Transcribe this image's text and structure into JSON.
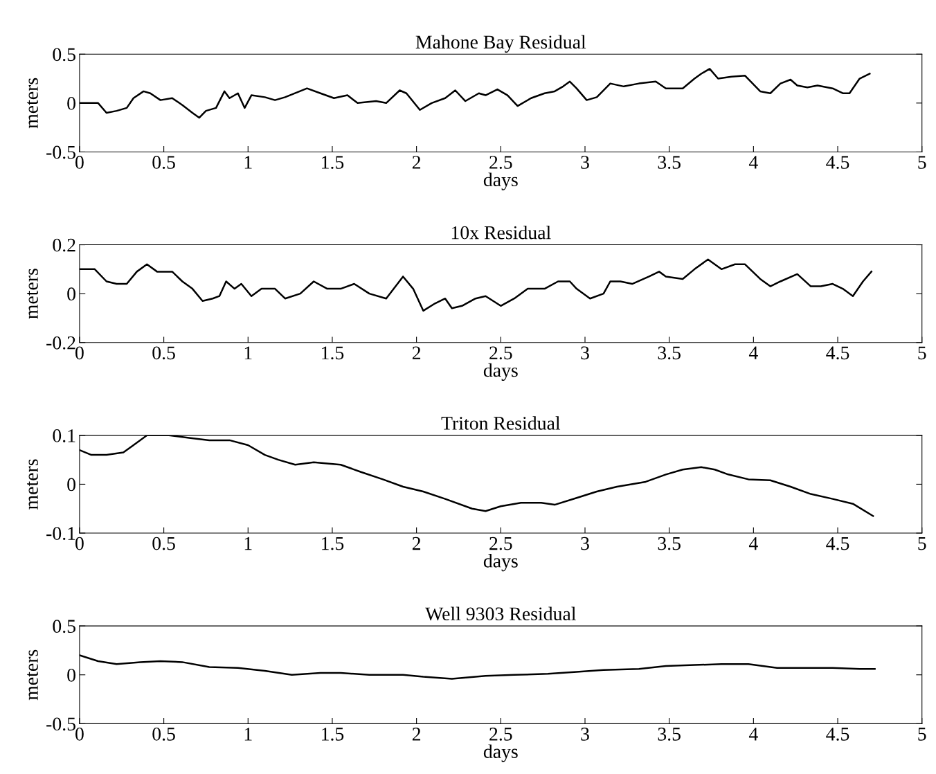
{
  "chart_data": [
    {
      "type": "line",
      "title": "Mahone Bay Residual",
      "xlabel": "days",
      "ylabel": "meters",
      "color": "#000000",
      "grid": false,
      "xlim": [
        0,
        5
      ],
      "xticks": [
        0,
        0.5,
        1,
        1.5,
        2,
        2.5,
        3,
        3.5,
        4,
        4.5,
        5
      ],
      "ylim": [
        -0.5,
        0.5
      ],
      "yticks": [
        -0.5,
        0,
        0.5
      ],
      "x": [
        0,
        0.11,
        0.16,
        0.22,
        0.28,
        0.32,
        0.38,
        0.42,
        0.48,
        0.55,
        0.61,
        0.67,
        0.71,
        0.75,
        0.81,
        0.86,
        0.89,
        0.94,
        0.98,
        1.02,
        1.1,
        1.16,
        1.22,
        1.35,
        1.43,
        1.51,
        1.59,
        1.65,
        1.76,
        1.82,
        1.9,
        1.94,
        2.02,
        2.09,
        2.17,
        2.23,
        2.29,
        2.37,
        2.41,
        2.48,
        2.54,
        2.6,
        2.68,
        2.76,
        2.82,
        2.87,
        2.91,
        2.95,
        3.01,
        3.07,
        3.15,
        3.23,
        3.32,
        3.42,
        3.48,
        3.58,
        3.65,
        3.69,
        3.74,
        3.79,
        3.87,
        3.95,
        4.04,
        4.1,
        4.16,
        4.22,
        4.26,
        4.32,
        4.38,
        4.47,
        4.53,
        4.57,
        4.63,
        4.69
      ],
      "values": [
        0,
        0.0,
        -0.1,
        -0.08,
        -0.05,
        0.05,
        0.12,
        0.1,
        0.03,
        0.05,
        -0.02,
        -0.1,
        -0.15,
        -0.08,
        -0.05,
        0.12,
        0.05,
        0.1,
        -0.05,
        0.08,
        0.06,
        0.03,
        0.06,
        0.15,
        0.1,
        0.05,
        0.08,
        0.0,
        0.02,
        0.0,
        0.13,
        0.1,
        -0.07,
        0.0,
        0.05,
        0.13,
        0.02,
        0.1,
        0.08,
        0.14,
        0.08,
        -0.03,
        0.05,
        0.1,
        0.12,
        0.17,
        0.22,
        0.15,
        0.03,
        0.06,
        0.2,
        0.17,
        0.2,
        0.22,
        0.15,
        0.15,
        0.25,
        0.3,
        0.35,
        0.25,
        0.27,
        0.28,
        0.12,
        0.1,
        0.2,
        0.24,
        0.18,
        0.16,
        0.18,
        0.15,
        0.1,
        0.1,
        0.25,
        0.3
      ]
    },
    {
      "type": "line",
      "title": "10x Residual",
      "xlabel": "days",
      "ylabel": "meters",
      "color": "#000000",
      "grid": false,
      "xlim": [
        0,
        5
      ],
      "xticks": [
        0,
        0.5,
        1,
        1.5,
        2,
        2.5,
        3,
        3.5,
        4,
        4.5,
        5
      ],
      "ylim": [
        -0.2,
        0.2
      ],
      "yticks": [
        -0.2,
        0,
        0.2
      ],
      "x": [
        0,
        0.09,
        0.16,
        0.22,
        0.28,
        0.34,
        0.4,
        0.46,
        0.55,
        0.61,
        0.67,
        0.73,
        0.79,
        0.83,
        0.87,
        0.92,
        0.96,
        1.02,
        1.08,
        1.16,
        1.22,
        1.31,
        1.39,
        1.47,
        1.55,
        1.63,
        1.72,
        1.82,
        1.92,
        1.98,
        2.04,
        2.11,
        2.17,
        2.21,
        2.27,
        2.35,
        2.41,
        2.5,
        2.58,
        2.66,
        2.76,
        2.84,
        2.91,
        2.95,
        3.03,
        3.11,
        3.15,
        3.21,
        3.28,
        3.38,
        3.44,
        3.48,
        3.58,
        3.65,
        3.73,
        3.81,
        3.89,
        3.95,
        4.04,
        4.1,
        4.16,
        4.26,
        4.34,
        4.4,
        4.47,
        4.53,
        4.59,
        4.65,
        4.7
      ],
      "values": [
        0.1,
        0.1,
        0.05,
        0.04,
        0.04,
        0.09,
        0.12,
        0.09,
        0.09,
        0.05,
        0.02,
        -0.03,
        -0.02,
        -0.01,
        0.05,
        0.02,
        0.04,
        -0.01,
        0.02,
        0.02,
        -0.02,
        0.0,
        0.05,
        0.02,
        0.02,
        0.04,
        0.0,
        -0.02,
        0.07,
        0.02,
        -0.07,
        -0.04,
        -0.02,
        -0.06,
        -0.05,
        -0.02,
        -0.01,
        -0.05,
        -0.02,
        0.02,
        0.02,
        0.05,
        0.05,
        0.02,
        -0.02,
        0.0,
        0.05,
        0.05,
        0.04,
        0.07,
        0.09,
        0.07,
        0.06,
        0.1,
        0.14,
        0.1,
        0.12,
        0.12,
        0.06,
        0.03,
        0.05,
        0.08,
        0.03,
        0.03,
        0.04,
        0.02,
        -0.01,
        0.05,
        0.09
      ]
    },
    {
      "type": "line",
      "title": "Triton Residual",
      "xlabel": "days",
      "ylabel": "meters",
      "color": "#000000",
      "grid": false,
      "xlim": [
        0,
        5
      ],
      "xticks": [
        0,
        0.5,
        1,
        1.5,
        2,
        2.5,
        3,
        3.5,
        4,
        4.5,
        5
      ],
      "ylim": [
        -0.1,
        0.1
      ],
      "yticks": [
        -0.1,
        0,
        0.1
      ],
      "x": [
        0,
        0.07,
        0.16,
        0.26,
        0.32,
        0.4,
        0.53,
        0.65,
        0.77,
        0.89,
        1.0,
        1.1,
        1.18,
        1.28,
        1.39,
        1.55,
        1.67,
        1.8,
        1.92,
        2.04,
        2.17,
        2.33,
        2.41,
        2.5,
        2.62,
        2.74,
        2.82,
        2.95,
        3.07,
        3.19,
        3.36,
        3.48,
        3.58,
        3.69,
        3.77,
        3.85,
        3.97,
        4.1,
        4.22,
        4.34,
        4.47,
        4.59,
        4.71
      ],
      "values": [
        0.07,
        0.06,
        0.06,
        0.065,
        0.08,
        0.1,
        0.1,
        0.095,
        0.09,
        0.09,
        0.08,
        0.06,
        0.05,
        0.04,
        0.045,
        0.04,
        0.025,
        0.01,
        -0.005,
        -0.015,
        -0.03,
        -0.05,
        -0.055,
        -0.045,
        -0.038,
        -0.038,
        -0.042,
        -0.028,
        -0.015,
        -0.005,
        0.005,
        0.02,
        0.03,
        0.035,
        0.03,
        0.02,
        0.01,
        0.008,
        -0.005,
        -0.02,
        -0.03,
        -0.04,
        -0.065
      ]
    },
    {
      "type": "line",
      "title": "Well 9303 Residual",
      "xlabel": "days",
      "ylabel": "meters",
      "color": "#000000",
      "grid": false,
      "xlim": [
        0,
        5
      ],
      "xticks": [
        0,
        0.5,
        1,
        1.5,
        2,
        2.5,
        3,
        3.5,
        4,
        4.5,
        5
      ],
      "ylim": [
        -0.5,
        0.5
      ],
      "yticks": [
        -0.5,
        0,
        0.5
      ],
      "x": [
        0,
        0.11,
        0.22,
        0.36,
        0.48,
        0.61,
        0.77,
        0.94,
        1.1,
        1.26,
        1.43,
        1.55,
        1.72,
        1.92,
        2.04,
        2.21,
        2.41,
        2.58,
        2.78,
        2.95,
        3.11,
        3.32,
        3.48,
        3.65,
        3.81,
        3.97,
        4.14,
        4.3,
        4.47,
        4.63,
        4.72
      ],
      "values": [
        0.2,
        0.14,
        0.11,
        0.13,
        0.14,
        0.13,
        0.08,
        0.07,
        0.04,
        0.0,
        0.02,
        0.02,
        0.0,
        0.0,
        -0.02,
        -0.04,
        -0.01,
        0.0,
        0.01,
        0.03,
        0.05,
        0.06,
        0.09,
        0.1,
        0.11,
        0.11,
        0.07,
        0.07,
        0.07,
        0.06,
        0.06
      ]
    }
  ]
}
